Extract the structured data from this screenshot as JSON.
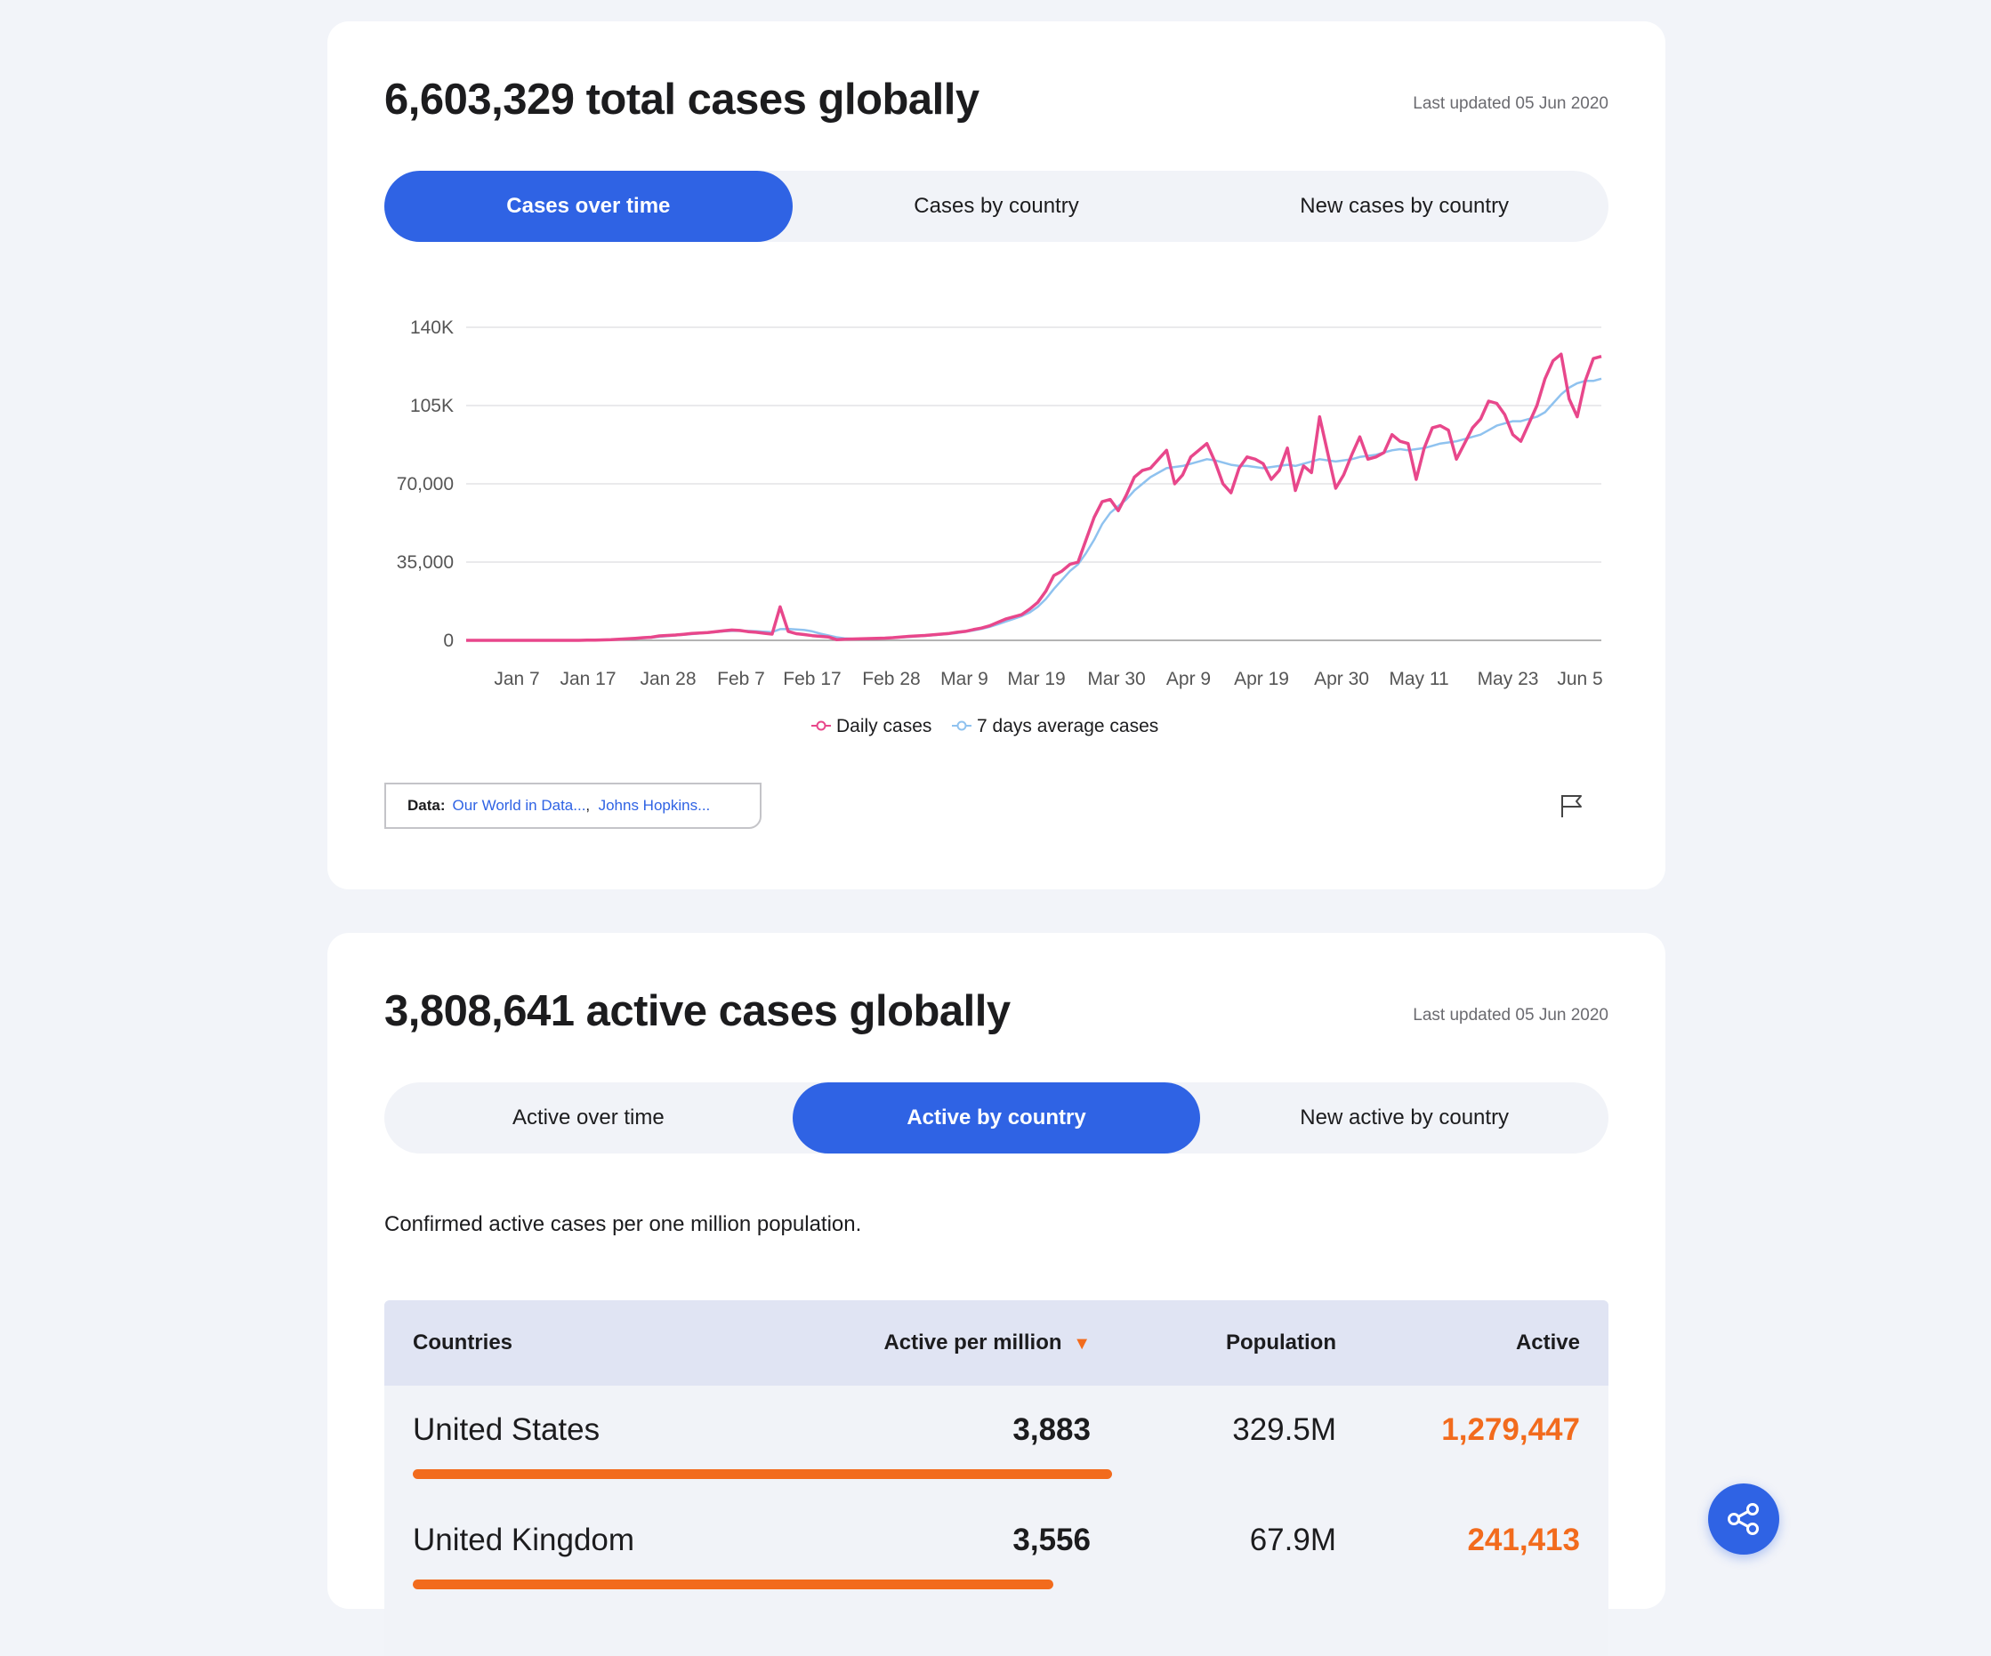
{
  "total_card": {
    "title": "6,603,329 total cases globally",
    "updated": "Last updated 05 Jun 2020",
    "tabs": [
      "Cases over time",
      "Cases by country",
      "New cases by country"
    ],
    "active_tab": 0,
    "source_label": "Data:",
    "sources": [
      "Our World in Data...",
      "Johns Hopkins..."
    ],
    "flag_icon": "flag-icon"
  },
  "chart_data": {
    "type": "line",
    "title": "",
    "xlabel": "",
    "ylabel": "",
    "x_ticks": [
      "Jan 7",
      "Jan 17",
      "Jan 28",
      "Feb 7",
      "Feb 17",
      "Feb 28",
      "Mar 9",
      "Mar 19",
      "Mar 30",
      "Apr 9",
      "Apr 19",
      "Apr 30",
      "May 11",
      "May 23",
      "Jun 5"
    ],
    "y_ticks": [
      "0",
      "35,000",
      "70,000",
      "105K",
      "140K"
    ],
    "ylim": [
      0,
      140000
    ],
    "grid": true,
    "legend_position": "bottom",
    "series": [
      {
        "name": "Daily cases",
        "color": "#e8478b",
        "values": [
          0,
          0,
          0,
          0,
          0,
          0,
          0,
          0,
          0,
          0,
          0,
          0,
          0,
          0,
          0,
          100,
          100,
          200,
          300,
          500,
          700,
          900,
          1200,
          1400,
          2000,
          2200,
          2400,
          2700,
          3100,
          3300,
          3500,
          3900,
          4300,
          4600,
          4400,
          3900,
          3600,
          3200,
          2800,
          15000,
          4000,
          3000,
          2600,
          2100,
          1800,
          1500,
          300,
          500,
          600,
          700,
          800,
          900,
          1000,
          1200,
          1500,
          1800,
          2000,
          2200,
          2500,
          2800,
          3100,
          3600,
          4000,
          4800,
          5500,
          6500,
          8000,
          9500,
          10500,
          11500,
          14000,
          17000,
          22000,
          29000,
          31000,
          34000,
          35000,
          45000,
          55000,
          62000,
          63000,
          58000,
          65000,
          73000,
          76000,
          77000,
          81000,
          85000,
          70000,
          74000,
          82000,
          85000,
          88000,
          80000,
          70000,
          66000,
          77000,
          82000,
          81000,
          79000,
          72000,
          76000,
          86000,
          67000,
          78000,
          75000,
          100000,
          84000,
          68000,
          74000,
          83000,
          91000,
          81000,
          82000,
          84000,
          92000,
          89000,
          88000,
          72000,
          86000,
          95000,
          96000,
          94000,
          81000,
          88000,
          95000,
          99000,
          107000,
          106000,
          101000,
          92000,
          89000,
          97000,
          105000,
          117000,
          125000,
          128000,
          108000,
          100000,
          116000,
          126000,
          127000
        ],
        "x_start": "Jan 1",
        "x_end": "Jun 5"
      },
      {
        "name": "7 days average cases",
        "color": "#8fc2ef",
        "values": [
          0,
          0,
          0,
          0,
          0,
          0,
          0,
          0,
          0,
          0,
          0,
          0,
          0,
          0,
          0,
          50,
          80,
          150,
          250,
          400,
          600,
          800,
          1000,
          1200,
          1600,
          1900,
          2200,
          2500,
          2800,
          3100,
          3400,
          3700,
          4000,
          4200,
          4300,
          4200,
          4100,
          3900,
          3700,
          5000,
          5100,
          4900,
          4600,
          4000,
          3000,
          2200,
          1400,
          900,
          700,
          700,
          800,
          900,
          1000,
          1100,
          1300,
          1500,
          1800,
          2000,
          2300,
          2600,
          2900,
          3300,
          3800,
          4400,
          5100,
          6000,
          7100,
          8400,
          9600,
          10800,
          12500,
          15000,
          18500,
          23000,
          27000,
          31000,
          34000,
          39000,
          45000,
          52000,
          57000,
          60000,
          63000,
          67000,
          70000,
          73000,
          75000,
          77000,
          77500,
          78000,
          79000,
          80000,
          81000,
          80500,
          79500,
          78500,
          78000,
          78000,
          77500,
          77000,
          77500,
          78000,
          78500,
          78000,
          79000,
          80000,
          81000,
          80500,
          80000,
          80500,
          81000,
          82000,
          82500,
          83000,
          84000,
          85000,
          85500,
          85000,
          85500,
          86000,
          87000,
          88000,
          88500,
          89000,
          90000,
          91000,
          92000,
          94000,
          96000,
          97000,
          98000,
          98000,
          99000,
          100000,
          102000,
          106000,
          110000,
          113000,
          115000,
          116000,
          116000,
          117000
        ],
        "x_start": "Jan 1",
        "x_end": "Jun 5"
      }
    ]
  },
  "active_card": {
    "title": "3,808,641 active cases globally",
    "updated": "Last updated 05 Jun 2020",
    "tabs": [
      "Active over time",
      "Active by country",
      "New active by country"
    ],
    "active_tab": 1,
    "description": "Confirmed active cases per one million population.",
    "table": {
      "headers": {
        "countries": "Countries",
        "active_per_million": "Active per million",
        "sort_icon": "sort-desc-icon",
        "population": "Population",
        "active": "Active"
      },
      "rows": [
        {
          "country": "United States",
          "active_per_million": "3,883",
          "population": "329.5M",
          "active": "1,279,447",
          "bar_fraction": 1.0
        },
        {
          "country": "United Kingdom",
          "active_per_million": "3,556",
          "population": "67.9M",
          "active": "241,413",
          "bar_fraction": 0.916
        }
      ]
    }
  },
  "share_icon": "share-icon",
  "colors": {
    "accent": "#2f63e4",
    "orange": "#f26b1d",
    "daily": "#e8478b",
    "average": "#8fc2ef"
  }
}
